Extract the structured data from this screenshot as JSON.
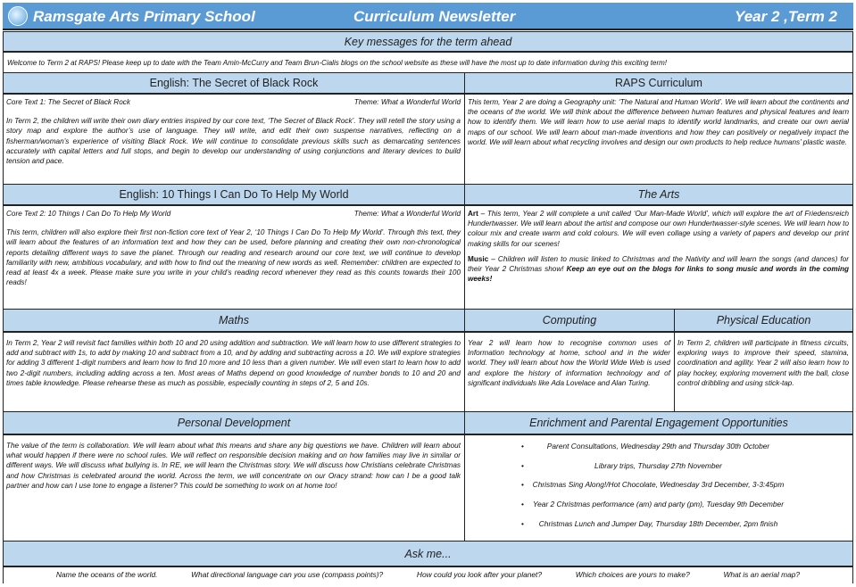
{
  "header": {
    "school": "Ramsgate Arts Primary School",
    "title": "Curriculum Newsletter",
    "term": "Year 2 ,Term 2",
    "logo_icon": "school-logo"
  },
  "key_messages": {
    "heading": "Key messages for the term ahead",
    "text": "Welcome to Term 2 at RAPS! Please keep up to date with the Team Amin-McCurry and  Team Brun-Cialis blogs on the school website as these will have the most up to date information during this exciting term!"
  },
  "english1": {
    "heading": "English: The Secret of Black Rock",
    "core_text": "Core Text 1: The Secret of Black Rock",
    "theme": "Theme: What a Wonderful World",
    "body": "In Term 2, the children will write their own diary entries inspired by our core text, ‘The Secret of Black Rock’. They will retell the story using a story map and explore the author’s use of language. They will write, and edit their own suspense narratives, reflecting on a fisherman/woman’s experience of visiting Black Rock. We will continue to consolidate previous skills such as demarcating sentences accurately with capital letters and full stops, and begin to develop our understanding of using conjunctions and literary devices to build tension and pace."
  },
  "raps": {
    "heading": "RAPS Curriculum",
    "body": "This term, Year 2 are doing a Geography unit: ‘The Natural and Human World’. We will learn about the continents and the oceans of the world. We will think about the difference between human features and physical features and learn how to identify them. We will learn how to use aerial maps to identify world landmarks, and create our own aerial maps of our school. We will learn about man-made    inventions and how they can positively or negatively impact the world. We will learn about what recycling involves and design our own products to help reduce humans’ plastic waste."
  },
  "english2": {
    "heading": "English: 10 Things I Can Do To Help My World",
    "core_text": "Core Text 2: 10 Things I Can Do To Help My World",
    "theme": "Theme: What a Wonderful World",
    "body": "This term, children will also explore their first non-fiction core text of Year 2, ‘10 Things I Can Do To Help My World’. Through this text, they will learn about the features of an information text and how they can be used, before planning and creating their own non-chronological reports detailing different ways to save the planet. Through our reading and research around our core text, we will continue to develop familiarity with new, ambitious vocabulary, and with how to find out the meaning of new words as well. Remember: children are expected to read at least 4x a week. Please make sure you write in your child’s reading record whenever they read as this counts towards their 100 reads!"
  },
  "arts": {
    "heading": "The Arts",
    "art_label": "Art",
    "art_body": " – This term, Year 2 will complete a unit called ‘Our Man-Made World’, which will explore the art of Friedensreich Hundertwasser. We will learn about the artist and compose our own Hundertwasser-style scenes. We will learn how to colour mix and create warm and cold colours. We will even collage using a variety of papers and develop our print making skills for our scenes!",
    "music_label": "Music",
    "music_body": " – Children will listen to music linked to Christmas and the Nativity and will learn the songs (and dances) for their Year 2 Christmas show! ",
    "music_bold": "Keep an eye out on the blogs for links to song music and words in the coming weeks!"
  },
  "maths": {
    "heading": "Maths",
    "body": "In Term 2, Year 2 will revisit fact families within both 10 and 20 using addition and subtraction. We will learn how to use different strategies to add and subtract with 1s, to add by making 10 and subtract from a 10, and by adding and subtracting across a 10. We will explore strategies for adding 3 different 1-digit numbers and learn how to find 10 more and 10 less than a given number. We will even start to learn how to add two 2-digit numbers, including adding across a ten. Most areas of Maths depend on good knowledge of number bonds to 10 and 20 and times table  knowledge. Please rehearse these as much as possible, especially counting in steps of 2, 5 and 10s."
  },
  "computing": {
    "heading": "Computing",
    "body": "Year 2 will learn how to recognise common uses of Information technology at home, school and in the wider world. They will learn about how the World Wide Web is used and explore the history of information technology and of significant individuals like Ada Lovelace and Alan Turing."
  },
  "pe": {
    "heading": "Physical Education",
    "body": "In Term 2, children will participate in fitness circuits, exploring ways to improve their speed, stamina, coordination and agility. Year 2 will also learn how to play hockey, exploring movement with the ball, close control dribbling and using stick-tap."
  },
  "personal": {
    "heading": "Personal Development",
    "body": "The value of the term is collaboration. We will learn about what this means and share any big questions we have. Children will learn about what would happen if there were no school rules. We will  reflect on responsible decision making and on how families may live in similar or different ways. We will discuss what bullying is. In RE, we will learn the Christmas story. We will discuss how Christians celebrate Christmas and how Christmas is celebrated around the world. Across the term, we will concentrate on our Oracy strand: how can I be a good talk partner and how can I use tone to engage a listener? This could be something to work on at home too!"
  },
  "enrichment": {
    "heading": "Enrichment and Parental Engagement Opportunities",
    "items": [
      "Parent Consultations, Wednesday 29th and Thursday 30th October",
      "Library trips, Thursday 27th November",
      "Christmas Sing Along!/Hot Chocolate, Wednesday 3rd December, 3-3:45pm",
      "Year 2 Christmas performance (am) and party (pm), Tuesday 9th December",
      "Christmas Lunch and Jumper Day, Thursday 18th December, 2pm finish"
    ]
  },
  "ask": {
    "heading": "Ask me...",
    "questions": [
      "Name the oceans of the world.",
      "What directional language can you use (compass points)?",
      "How could you look after your planet?",
      "Which choices are yours to make?",
      "What is an aerial map?"
    ]
  },
  "colors": {
    "header_bg": "#5b9bd5",
    "section_bg": "#bdd7ee"
  }
}
